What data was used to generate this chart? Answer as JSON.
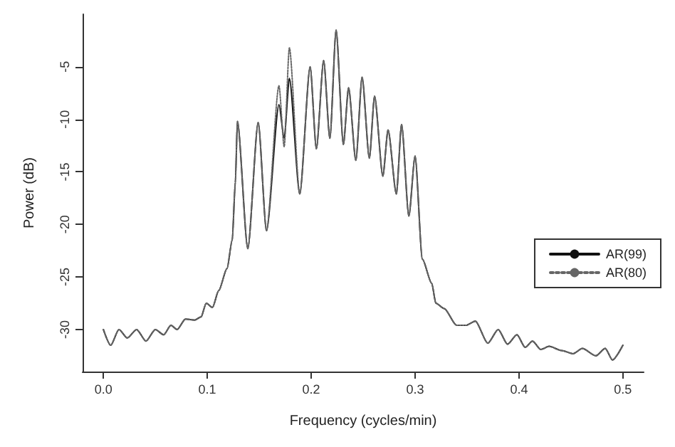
{
  "chart_data": {
    "type": "line",
    "xlabel": "Frequency (cycles/min)",
    "ylabel": "Power (dB)",
    "xlim": [
      -0.02,
      0.52
    ],
    "ylim": [
      -34,
      0
    ],
    "xticks": [
      {
        "value": 0,
        "label": "0.0"
      },
      0.1,
      0.2,
      0.3,
      0.4,
      0.5
    ],
    "yticks": [
      -30,
      -25,
      -20,
      -15,
      -10,
      -5
    ],
    "grid": false,
    "legend": "right",
    "marker": "none",
    "x": [
      0,
      0.007,
      0.015,
      0.023,
      0.032,
      0.041,
      0.05,
      0.058,
      0.065,
      0.071,
      0.079,
      0.088,
      0.094,
      0.099,
      0.105,
      0.111,
      0.119,
      0.124,
      0.127,
      0.129,
      0.139,
      0.149,
      0.157,
      0.169,
      0.174,
      0.179,
      0.189,
      0.199,
      0.205,
      0.212,
      0.218,
      0.224,
      0.231,
      0.236,
      0.243,
      0.249,
      0.256,
      0.261,
      0.269,
      0.274,
      0.282,
      0.287,
      0.294,
      0.3,
      0.307,
      0.316,
      0.32,
      0.328,
      0.34,
      0.349,
      0.358,
      0.37,
      0.38,
      0.389,
      0.398,
      0.406,
      0.413,
      0.421,
      0.429,
      0.441,
      0.452,
      0.461,
      0.474,
      0.483,
      0.49,
      0.5
    ],
    "series": [
      {
        "name": "AR(99)",
        "color": "#111111",
        "line_style": "solid",
        "values": [
          -30,
          -31.5,
          -30,
          -30.8,
          -30,
          -31.1,
          -30,
          -30.5,
          -29.6,
          -30,
          -29,
          -29.1,
          -28.8,
          -27.5,
          -27.9,
          -26.3,
          -24.2,
          -21.5,
          -16,
          -10.2,
          -22.3,
          -10.3,
          -20.6,
          -8.6,
          -11.8,
          -6.1,
          -17.1,
          -5,
          -12.8,
          -4.4,
          -11.8,
          -1.5,
          -12.4,
          -7,
          -13.9,
          -6,
          -13.7,
          -7.8,
          -15.4,
          -11,
          -17.1,
          -10.5,
          -19.2,
          -13.5,
          -23.3,
          -25.6,
          -27.5,
          -28,
          -29.6,
          -29.6,
          -29.2,
          -31.3,
          -30,
          -31.4,
          -30.5,
          -31.7,
          -31.1,
          -31.9,
          -31.6,
          -32,
          -32.3,
          -31.8,
          -32.5,
          -31.8,
          -32.9,
          -31.5
        ]
      },
      {
        "name": "AR(80)",
        "color": "#666666",
        "line_style": "dotted",
        "values": [
          -30,
          -31.5,
          -30,
          -30.8,
          -30,
          -31.1,
          -30,
          -30.5,
          -29.6,
          -30,
          -29,
          -29.1,
          -28.8,
          -27.5,
          -27.9,
          -26.3,
          -24.2,
          -21.5,
          -16,
          -10.2,
          -22.3,
          -10.3,
          -20.6,
          -6.8,
          -12.6,
          -3.2,
          -17.1,
          -5,
          -12.8,
          -4.4,
          -11.8,
          -1.5,
          -12.4,
          -7,
          -13.9,
          -6,
          -13.7,
          -7.8,
          -15.4,
          -11,
          -17.1,
          -10.5,
          -19.2,
          -13.5,
          -23.3,
          -25.6,
          -27.5,
          -28,
          -29.6,
          -29.6,
          -29.2,
          -31.3,
          -30,
          -31.4,
          -30.5,
          -31.7,
          -31.1,
          -31.9,
          -31.6,
          -32,
          -32.3,
          -31.8,
          -32.5,
          -31.8,
          -32.9,
          -31.5
        ]
      }
    ]
  }
}
